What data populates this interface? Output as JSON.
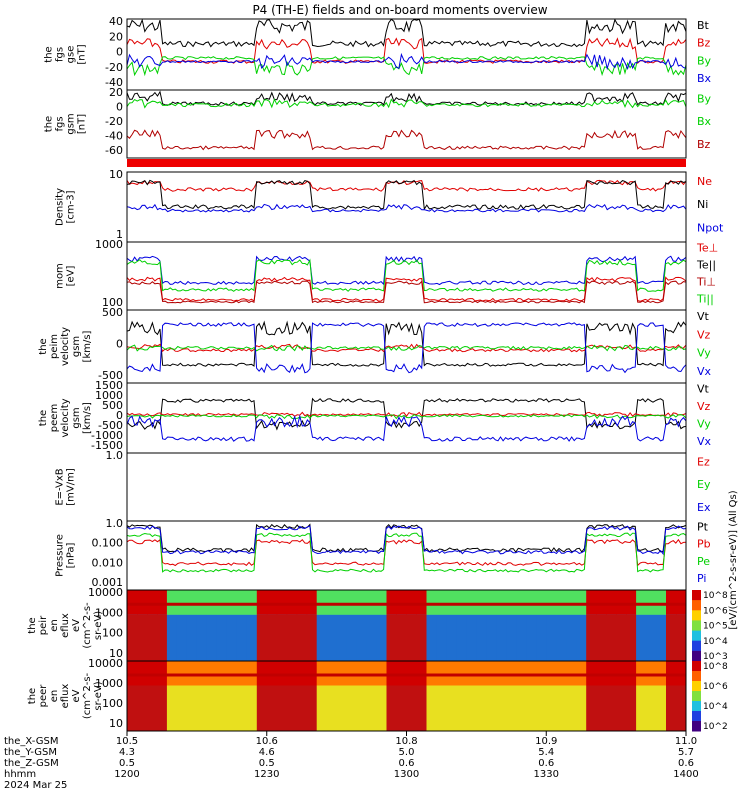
{
  "title": "P4 (TH-E) fields and on-board moments overview",
  "colors": {
    "black": "#000000",
    "red": "#e00000",
    "green": "#00d000",
    "blue": "#0000e0",
    "darkred": "#b00000"
  },
  "chart_data": [
    {
      "type": "line",
      "ylabel": [
        "the",
        "fgs",
        "gse",
        "[nT]"
      ],
      "ylim": [
        -40,
        40
      ],
      "yticks": [
        "40",
        "20",
        "0",
        "-20",
        "-40"
      ],
      "legend": [
        {
          "name": "Bt",
          "color": "black"
        },
        {
          "name": "Bz",
          "color": "red"
        },
        {
          "name": "By",
          "color": "green"
        },
        {
          "name": "Bx",
          "color": "blue"
        }
      ]
    },
    {
      "type": "line",
      "ylabel": [
        "the",
        "fgs",
        "gsm",
        "[nT]"
      ],
      "ylim": [
        -70,
        20
      ],
      "yticks": [
        "20",
        "0",
        "-20",
        "-40",
        "-60"
      ],
      "legend": [
        {
          "name": "By",
          "color": "green"
        },
        {
          "name": "Bx",
          "color": "green"
        },
        {
          "name": "Bz",
          "color": "darkred"
        }
      ]
    },
    {
      "type": "line",
      "ylabel": [
        "Density",
        "[cm-3]"
      ],
      "scale": "log",
      "yticks": [
        "10",
        "1"
      ],
      "legend": [
        {
          "name": "Ne",
          "color": "red"
        },
        {
          "name": "Ni",
          "color": "black"
        },
        {
          "name": "Npot",
          "color": "blue"
        }
      ]
    },
    {
      "type": "line",
      "ylabel": [
        "mom",
        "[eV]"
      ],
      "scale": "log",
      "yticks": [
        "1000",
        "100"
      ],
      "legend": [
        {
          "name": "Te⊥",
          "color": "red"
        },
        {
          "name": "Te||",
          "color": "black"
        },
        {
          "name": "Ti⊥",
          "color": "darkred"
        },
        {
          "name": "Ti||",
          "color": "green"
        }
      ]
    },
    {
      "type": "line",
      "ylabel": [
        "the",
        "peim",
        "velocity",
        "gsm",
        "[km/s]"
      ],
      "ylim": [
        -1000,
        1000
      ],
      "yticks": [
        "500",
        "0",
        "-500"
      ],
      "legend": [
        {
          "name": "Vt",
          "color": "black"
        },
        {
          "name": "Vz",
          "color": "red"
        },
        {
          "name": "Vy",
          "color": "green"
        },
        {
          "name": "Vx",
          "color": "blue"
        }
      ]
    },
    {
      "type": "line",
      "ylabel": [
        "the",
        "peem",
        "velocity",
        "gsm",
        "[km/s]"
      ],
      "ylim": [
        -1500,
        1500
      ],
      "yticks": [
        "1500",
        "1000",
        "500",
        "0",
        "-500",
        "-1000",
        "-1500"
      ],
      "legend": [
        {
          "name": "Vt",
          "color": "black"
        },
        {
          "name": "Vz",
          "color": "red"
        },
        {
          "name": "Vy",
          "color": "green"
        },
        {
          "name": "Vx",
          "color": "blue"
        }
      ]
    },
    {
      "type": "line",
      "ylabel": [
        "E=-VxB",
        "[mV/m]"
      ],
      "ylim": [
        -1,
        1
      ],
      "yticks": [
        "1.0"
      ],
      "legend": [
        {
          "name": "Ez",
          "color": "red"
        },
        {
          "name": "Ey",
          "color": "green"
        },
        {
          "name": "Ex",
          "color": "blue"
        }
      ]
    },
    {
      "type": "line",
      "ylabel": [
        "Pressure",
        "[nPa]"
      ],
      "scale": "log",
      "yticks": [
        "1.0",
        "0.100",
        "0.010",
        "0.001"
      ],
      "legend": [
        {
          "name": "Pt",
          "color": "black"
        },
        {
          "name": "Pb",
          "color": "red"
        },
        {
          "name": "Pe",
          "color": "green"
        },
        {
          "name": "Pi",
          "color": "blue"
        }
      ]
    },
    {
      "type": "heatmap",
      "ylabel": [
        "the",
        "peir",
        "en",
        "eflux",
        "eV",
        "(cm^2-s-",
        "sr-eV)"
      ],
      "yticks": [
        "10000",
        "1000",
        "100",
        "10"
      ],
      "colorbar": [
        "10^8",
        "10^6",
        "10^5",
        "10^4",
        "10^3"
      ]
    },
    {
      "type": "heatmap",
      "ylabel": [
        "the",
        "peer",
        "en",
        "eflux",
        "eV",
        "(cm^2-s-",
        "sr-eV)"
      ],
      "yticks": [
        "10000",
        "1000",
        "100",
        "10"
      ],
      "colorbar": [
        "10^8",
        "10^6",
        "10^4",
        "10^2"
      ]
    }
  ],
  "colorbar_label": "[eV/(cm^2-s-sr-eV)] (All Qs)",
  "xaxis": {
    "row_labels": [
      "the_X-GSM",
      "the_Y-GSM",
      "the_Z-GSM",
      "hhmm",
      "2024 Mar 25"
    ],
    "columns": [
      {
        "x": "10.5",
        "y": "4.3",
        "z": "0.5",
        "hhmm": "1200"
      },
      {
        "x": "10.6",
        "y": "4.6",
        "z": "0.5",
        "hhmm": "1230"
      },
      {
        "x": "10.8",
        "y": "5.0",
        "z": "0.6",
        "hhmm": "1300"
      },
      {
        "x": "10.9",
        "y": "5.4",
        "z": "0.6",
        "hhmm": "1330"
      },
      {
        "x": "11.0",
        "y": "5.7",
        "z": "0.6",
        "hhmm": "1400"
      }
    ]
  }
}
